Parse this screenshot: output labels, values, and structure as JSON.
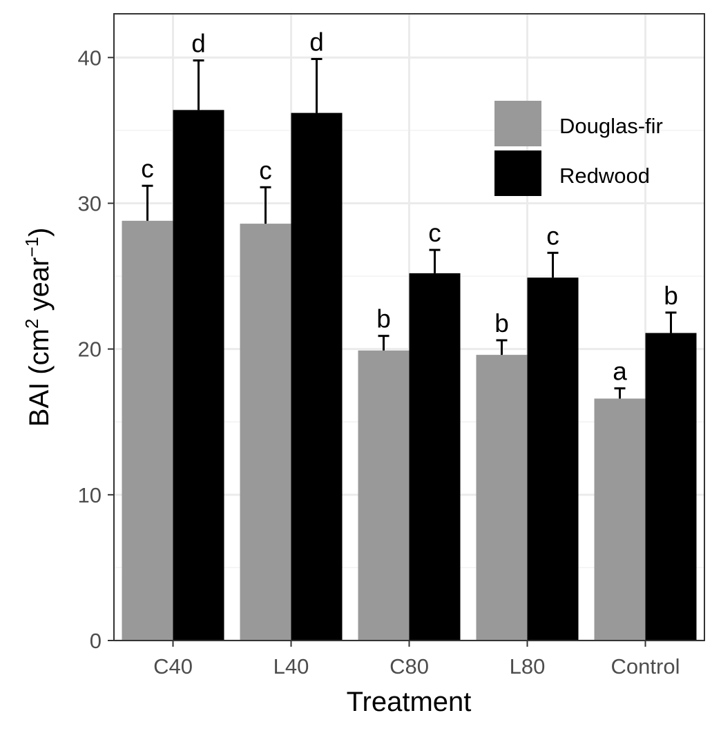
{
  "chart_data": {
    "type": "bar",
    "xlabel": "Treatment",
    "ylabel": {
      "base": "BAI (cm",
      "sup1": "2",
      "mid": " year",
      "sup2": "−1",
      "end": ")"
    },
    "categories": [
      "C40",
      "L40",
      "C80",
      "L80",
      "Control"
    ],
    "series": [
      {
        "name": "Douglas-fir",
        "color": "#999999",
        "values": [
          28.8,
          28.6,
          19.9,
          19.6,
          16.6
        ],
        "errors": [
          2.4,
          2.5,
          1.0,
          1.0,
          0.7
        ],
        "letters": [
          "c",
          "c",
          "b",
          "b",
          "a"
        ]
      },
      {
        "name": "Redwood",
        "color": "#000000",
        "values": [
          36.4,
          36.2,
          25.2,
          24.9,
          21.1
        ],
        "errors": [
          3.4,
          3.7,
          1.6,
          1.7,
          1.4
        ],
        "letters": [
          "d",
          "d",
          "c",
          "c",
          "b"
        ]
      }
    ],
    "ylim": [
      0,
      43
    ],
    "yticks": [
      0,
      10,
      20,
      30,
      40
    ],
    "grid": true,
    "legend_position": "top-right"
  }
}
